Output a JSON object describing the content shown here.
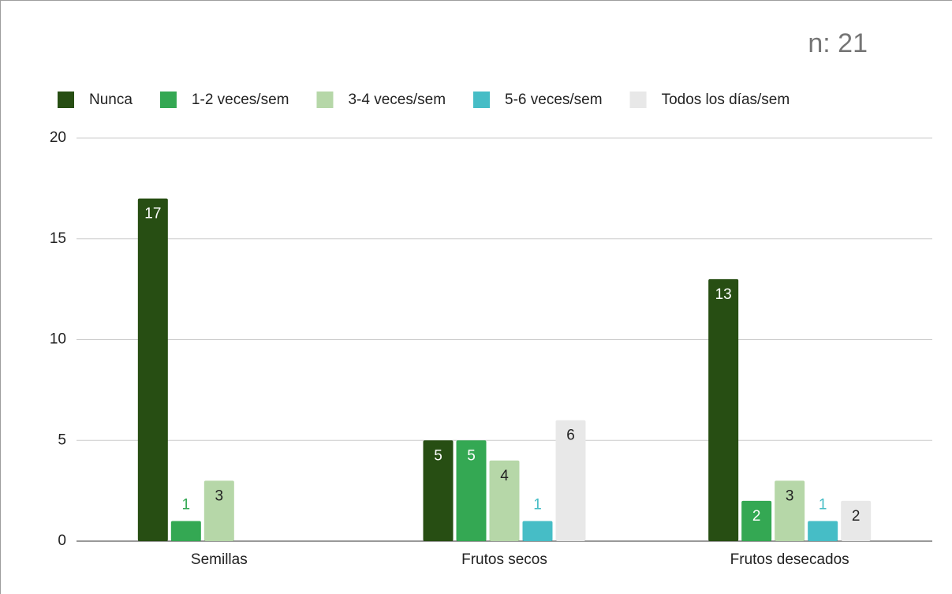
{
  "chart_data": {
    "type": "bar",
    "title": "n: 21",
    "categories": [
      "Semillas",
      "Frutos secos",
      "Frutos desecados"
    ],
    "series": [
      {
        "name": "Nunca",
        "color": "#274e13",
        "values": [
          17,
          5,
          13
        ]
      },
      {
        "name": "1-2 veces/sem",
        "color": "#34a853",
        "values": [
          1,
          5,
          2
        ]
      },
      {
        "name": "3-4 veces/sem",
        "color": "#b6d7a8",
        "values": [
          3,
          4,
          3
        ]
      },
      {
        "name": "5-6 veces/sem",
        "color": "#46bdc6",
        "values": [
          null,
          1,
          1
        ]
      },
      {
        "name": "Todos los días/sem",
        "color": "#e8e8e8",
        "values": [
          null,
          6,
          2
        ]
      }
    ],
    "ylim": [
      0,
      20
    ],
    "yticks": [
      0,
      5,
      10,
      15,
      20
    ],
    "grid": true,
    "legend": "top"
  }
}
